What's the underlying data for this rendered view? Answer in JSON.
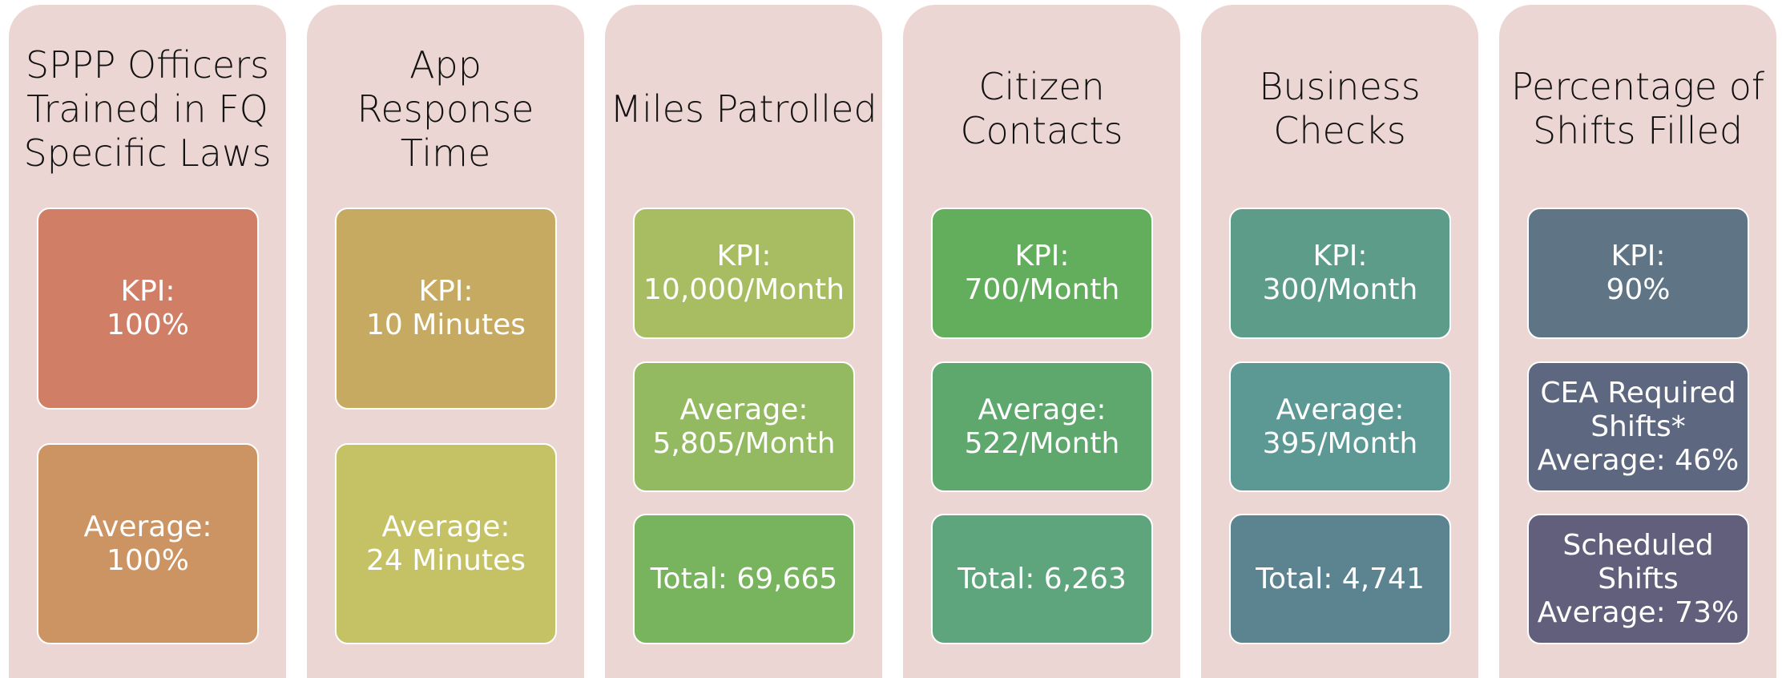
{
  "background": "#ecd6d3",
  "columns": [
    {
      "title": [
        "SPPP Officers",
        "Trained in FQ",
        "Specific Laws"
      ],
      "boxes": [
        {
          "lines": [
            "KPI:",
            "100%"
          ],
          "color": "#d07e66"
        },
        {
          "lines": [
            "Average:",
            "100%"
          ],
          "color": "#cc9462"
        }
      ]
    },
    {
      "title": [
        "App",
        "Response",
        "Time"
      ],
      "boxes": [
        {
          "lines": [
            "KPI:",
            "10 Minutes"
          ],
          "color": "#c7aa62"
        },
        {
          "lines": [
            "Average:",
            "24 Minutes"
          ],
          "color": "#c4c264"
        }
      ]
    },
    {
      "title": [
        "Miles Patrolled"
      ],
      "boxes": [
        {
          "lines": [
            "KPI:",
            "10,000/Month"
          ],
          "color": "#a8bd62"
        },
        {
          "lines": [
            "Average:",
            "5,805/Month"
          ],
          "color": "#93ba60"
        },
        {
          "lines": [
            "Total: 69,665"
          ],
          "color": "#78b35e"
        }
      ]
    },
    {
      "title": [
        "Citizen",
        "Contacts"
      ],
      "boxes": [
        {
          "lines": [
            "KPI:",
            "700/Month"
          ],
          "color": "#63ae5d"
        },
        {
          "lines": [
            "Average:",
            "522/Month"
          ],
          "color": "#5ea86e"
        },
        {
          "lines": [
            "Total: 6,263"
          ],
          "color": "#5ea47c"
        }
      ]
    },
    {
      "title": [
        "Business",
        "Checks"
      ],
      "boxes": [
        {
          "lines": [
            "KPI:",
            "300/Month"
          ],
          "color": "#5c9c88"
        },
        {
          "lines": [
            "Average:",
            "395/Month"
          ],
          "color": "#5c9894"
        },
        {
          "lines": [
            "Total: 4,741"
          ],
          "color": "#5c8490"
        }
      ]
    },
    {
      "title": [
        "Percentage of",
        "Shifts Filled"
      ],
      "boxes": [
        {
          "lines": [
            "KPI:",
            "90%"
          ],
          "color": "#5f7586"
        },
        {
          "lines": [
            "CEA Required",
            "Shifts*",
            "Average: 46%"
          ],
          "color": "#5d6880"
        },
        {
          "lines": [
            "Scheduled",
            "Shifts",
            "Average: 73%"
          ],
          "color": "#615f7c"
        }
      ]
    }
  ]
}
